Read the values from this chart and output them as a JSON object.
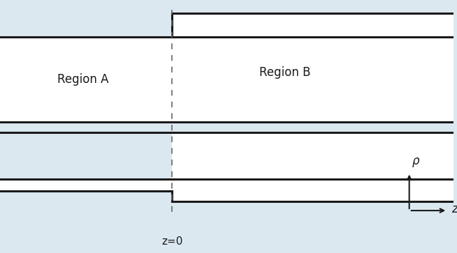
{
  "bg_color": "#dce8f0",
  "white_color": "#ffffff",
  "line_color": "#1a1a1a",
  "dashed_color": "#666666",
  "label_A": "Region A",
  "label_B": "Region B",
  "label_z0": "z=0",
  "label_rho": "ρ",
  "label_z": "z",
  "fig_width": 6.54,
  "fig_height": 3.63,
  "dpi": 100,
  "font_size": 12
}
